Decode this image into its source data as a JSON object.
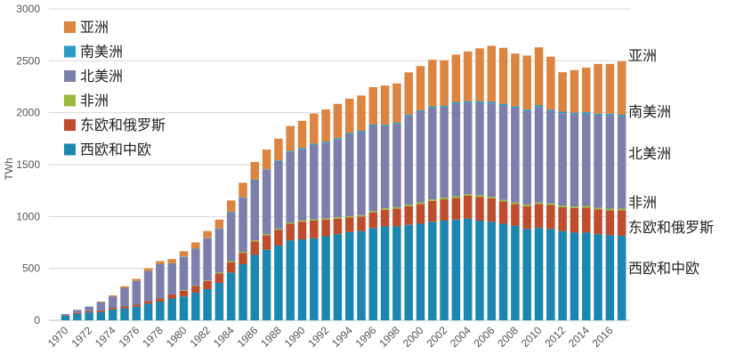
{
  "chart_data": {
    "type": "bar",
    "stacked": true,
    "title": "",
    "xlabel": "",
    "ylabel": "TWh",
    "ylim": [
      0,
      3000
    ],
    "yticks": [
      0,
      500,
      1000,
      1500,
      2000,
      2500,
      3000
    ],
    "grid": true,
    "legend_position": "top-left",
    "categories": [
      "1970",
      "1971",
      "1972",
      "1973",
      "1974",
      "1975",
      "1976",
      "1977",
      "1978",
      "1979",
      "1980",
      "1981",
      "1982",
      "1983",
      "1984",
      "1985",
      "1986",
      "1987",
      "1988",
      "1989",
      "1990",
      "1991",
      "1992",
      "1993",
      "1994",
      "1995",
      "1996",
      "1997",
      "1998",
      "1999",
      "2000",
      "2001",
      "2002",
      "2003",
      "2004",
      "2005",
      "2006",
      "2007",
      "2008",
      "2009",
      "2010",
      "2011",
      "2012",
      "2013",
      "2014",
      "2015",
      "2016",
      "2017"
    ],
    "xtick_labels": [
      "1970",
      "1972",
      "1974",
      "1976",
      "1978",
      "1980",
      "1982",
      "1984",
      "1986",
      "1988",
      "1990",
      "1992",
      "1994",
      "1996",
      "1998",
      "2000",
      "2002",
      "2004",
      "2006",
      "2008",
      "2010",
      "2012",
      "2014",
      "2016"
    ],
    "series": [
      {
        "name": "西欧和中欧",
        "color": "#1b87b0",
        "values": [
          45,
          60,
          75,
          80,
          105,
          115,
          130,
          160,
          180,
          210,
          230,
          265,
          300,
          360,
          460,
          540,
          630,
          680,
          720,
          770,
          780,
          790,
          810,
          830,
          850,
          860,
          890,
          905,
          905,
          920,
          930,
          950,
          960,
          970,
          980,
          960,
          950,
          930,
          910,
          880,
          890,
          880,
          860,
          845,
          845,
          830,
          820,
          815
        ]
      },
      {
        "name": "东欧和俄罗斯",
        "color": "#be4d2e",
        "values": [
          5,
          10,
          12,
          15,
          15,
          18,
          20,
          25,
          30,
          40,
          55,
          65,
          80,
          90,
          100,
          110,
          130,
          140,
          150,
          160,
          170,
          170,
          160,
          150,
          140,
          140,
          150,
          160,
          170,
          180,
          190,
          200,
          205,
          210,
          220,
          230,
          225,
          215,
          210,
          220,
          230,
          230,
          230,
          235,
          240,
          240,
          240,
          245
        ]
      },
      {
        "name": "非洲",
        "color": "#9ab93d",
        "values": [
          0,
          0,
          0,
          0,
          0,
          0,
          0,
          0,
          0,
          0,
          5,
          5,
          5,
          10,
          10,
          10,
          10,
          10,
          10,
          12,
          12,
          12,
          12,
          13,
          13,
          13,
          13,
          14,
          14,
          15,
          15,
          15,
          15,
          15,
          15,
          15,
          15,
          15,
          15,
          15,
          15,
          15,
          15,
          15,
          15,
          15,
          15,
          15
        ]
      },
      {
        "name": "北美洲",
        "color": "#7c7fab",
        "values": [
          10,
          30,
          45,
          80,
          110,
          180,
          230,
          290,
          330,
          300,
          320,
          350,
          400,
          420,
          470,
          520,
          580,
          620,
          650,
          680,
          690,
          720,
          730,
          750,
          790,
          800,
          820,
          790,
          800,
          850,
          870,
          880,
          870,
          890,
          880,
          890,
          900,
          910,
          910,
          900,
          920,
          890,
          890,
          890,
          890,
          890,
          900,
          890
        ]
      },
      {
        "name": "南美洲",
        "color": "#2b9cc4",
        "values": [
          0,
          0,
          0,
          0,
          0,
          0,
          0,
          0,
          0,
          0,
          5,
          5,
          5,
          5,
          5,
          5,
          5,
          5,
          10,
          10,
          10,
          10,
          10,
          12,
          12,
          12,
          13,
          13,
          13,
          14,
          14,
          15,
          15,
          15,
          15,
          15,
          15,
          15,
          15,
          15,
          15,
          15,
          15,
          15,
          15,
          15,
          15,
          15
        ]
      },
      {
        "name": "亚洲",
        "color": "#dc8440",
        "values": [
          0,
          0,
          0,
          5,
          10,
          15,
          20,
          25,
          30,
          40,
          50,
          60,
          70,
          85,
          110,
          140,
          170,
          190,
          210,
          240,
          260,
          290,
          310,
          330,
          330,
          340,
          360,
          380,
          380,
          410,
          430,
          450,
          440,
          460,
          480,
          510,
          540,
          540,
          510,
          520,
          560,
          510,
          380,
          410,
          430,
          480,
          480,
          515
        ]
      }
    ],
    "end_labels": [
      "亚洲",
      "南美洲",
      "北美洲",
      "非洲",
      "东欧和俄罗斯",
      "西欧和中欧"
    ]
  }
}
